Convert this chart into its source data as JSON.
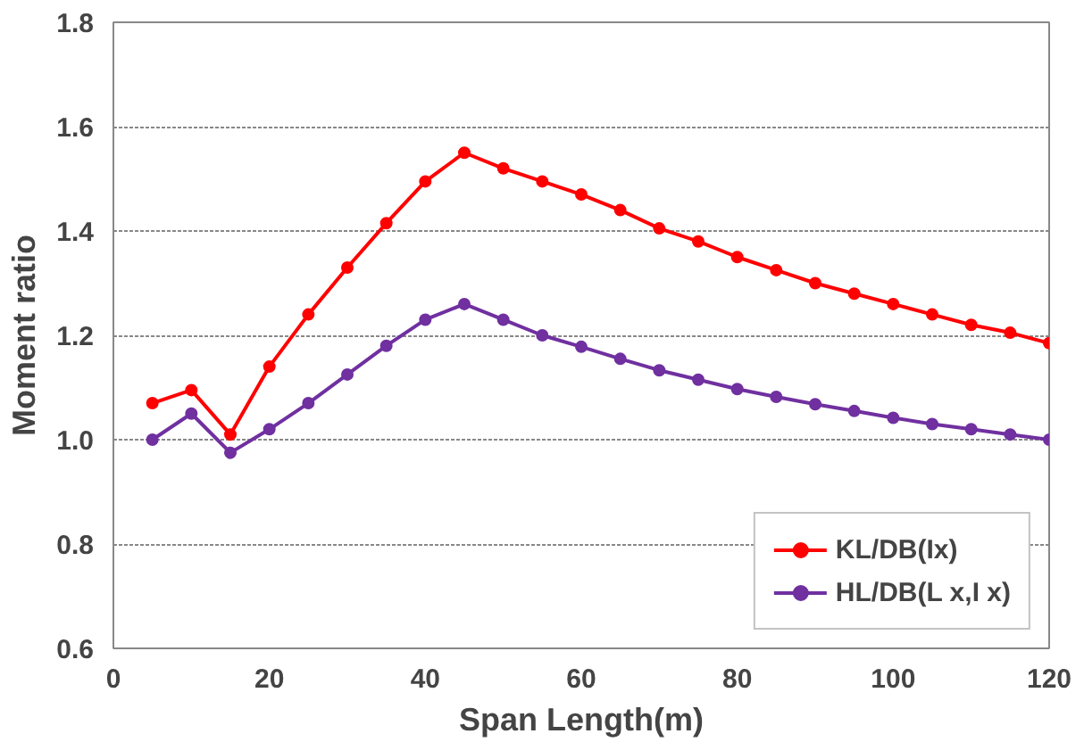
{
  "chart_data": {
    "type": "line",
    "xlabel": "Span Length(m)",
    "ylabel": "Moment ratio",
    "x": [
      5,
      10,
      15,
      20,
      25,
      30,
      35,
      40,
      45,
      50,
      55,
      60,
      65,
      70,
      75,
      80,
      85,
      90,
      95,
      100,
      105,
      110,
      115,
      120
    ],
    "series": [
      {
        "name": "KL/DB(Ix)",
        "color": "#ff0000",
        "values": [
          1.07,
          1.095,
          1.01,
          1.14,
          1.24,
          1.33,
          1.415,
          1.495,
          1.55,
          1.52,
          1.495,
          1.47,
          1.44,
          1.405,
          1.38,
          1.35,
          1.325,
          1.3,
          1.28,
          1.26,
          1.24,
          1.22,
          1.205,
          1.185
        ]
      },
      {
        "name": "HL/DB(L x,I x)",
        "color": "#7030a0",
        "values": [
          1.0,
          1.05,
          0.975,
          1.02,
          1.07,
          1.125,
          1.18,
          1.23,
          1.26,
          1.23,
          1.2,
          1.178,
          1.155,
          1.133,
          1.115,
          1.097,
          1.082,
          1.068,
          1.055,
          1.042,
          1.03,
          1.02,
          1.01,
          1.0
        ]
      }
    ],
    "xlim": [
      0,
      120
    ],
    "xticks": [
      0,
      20,
      40,
      60,
      80,
      100,
      120
    ],
    "ylim": [
      0.6,
      1.8
    ],
    "yticks": [
      {
        "value": 0.6,
        "label": "0.6"
      },
      {
        "value": 0.8,
        "label": "0.8"
      },
      {
        "value": 1.0,
        "label": "1.0"
      },
      {
        "value": 1.2,
        "label": "1.2"
      },
      {
        "value": 1.4,
        "label": "1.4"
      },
      {
        "value": 1.6,
        "label": "1.6"
      },
      {
        "value": 1.8,
        "label": "1.8"
      }
    ],
    "grid": "y",
    "legend": "bottom right",
    "marker": "circle",
    "line_style": "solid"
  }
}
